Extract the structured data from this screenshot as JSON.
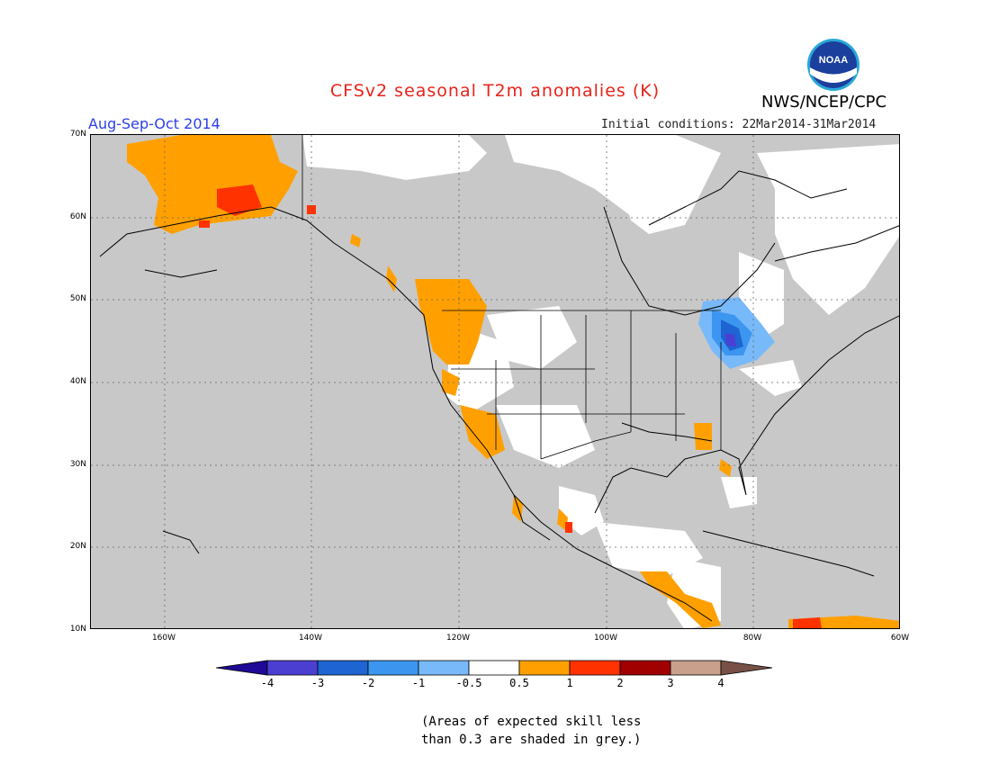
{
  "header": {
    "title": "CFSv2 seasonal T2m anomalies (K)",
    "period": "Aug-Sep-Oct 2014",
    "initial_conditions": "Initial conditions: 22Mar2014-31Mar2014",
    "agency": "NWS/NCEP/CPC",
    "logo_text": "NOAA"
  },
  "map": {
    "lat_labels": [
      "70N",
      "60N",
      "50N",
      "40N",
      "30N",
      "20N",
      "10N"
    ],
    "lon_labels": [
      "160W",
      "140W",
      "120W",
      "100W",
      "80W",
      "60W"
    ],
    "projection_extent": {
      "lon": [
        -170,
        -60
      ],
      "lat": [
        10,
        70
      ]
    },
    "skill_mask_color": "#c8c8c8"
  },
  "colorbar": {
    "labels": [
      "-4",
      "-3",
      "-2",
      "-1",
      "-0.5",
      "0.5",
      "1",
      "2",
      "3",
      "4"
    ],
    "colors": [
      "#1e0a96",
      "#4b3fd2",
      "#1e64d2",
      "#3c96f0",
      "#78b9fa",
      "#ffffff",
      "#ffa000",
      "#ff3200",
      "#a00000",
      "#c8a08c",
      "#785046"
    ]
  },
  "footnote": {
    "line1": "(Areas of expected skill less",
    "line2": "than 0.3 are shaded in grey.)"
  }
}
